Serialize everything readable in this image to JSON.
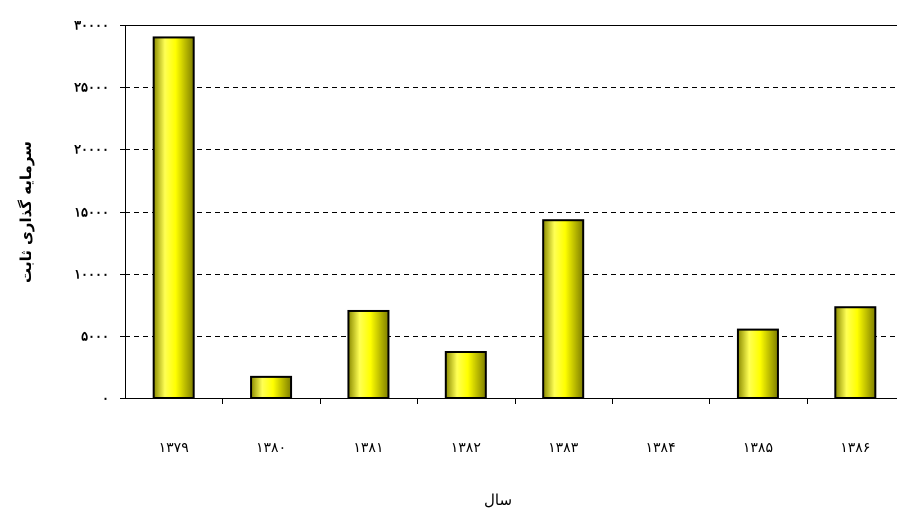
{
  "chart_data": {
    "type": "bar",
    "categories": [
      "۱۳۷۹",
      "۱۳۸۰",
      "۱۳۸۱",
      "۱۳۸۲",
      "۱۳۸۳",
      "۱۳۸۴",
      "۱۳۸۵",
      "۱۳۸۶"
    ],
    "values": [
      29000,
      1700,
      7000,
      3700,
      14300,
      0,
      5500,
      7300
    ],
    "xlabel": "سال",
    "ylabel": "سرمایه گذاری ثابت",
    "ylim": [
      0,
      30000
    ],
    "yticks": [
      0,
      5000,
      10000,
      15000,
      20000,
      25000,
      30000
    ],
    "ytick_labels": [
      "۰",
      "۵۰۰۰",
      "۱۰۰۰۰",
      "۱۵۰۰۰",
      "۲۰۰۰۰",
      "۲۵۰۰۰",
      "۳۰۰۰۰"
    ],
    "grid": true,
    "bar_color": "#FFFF00",
    "bar_edge_color": "#000000"
  }
}
